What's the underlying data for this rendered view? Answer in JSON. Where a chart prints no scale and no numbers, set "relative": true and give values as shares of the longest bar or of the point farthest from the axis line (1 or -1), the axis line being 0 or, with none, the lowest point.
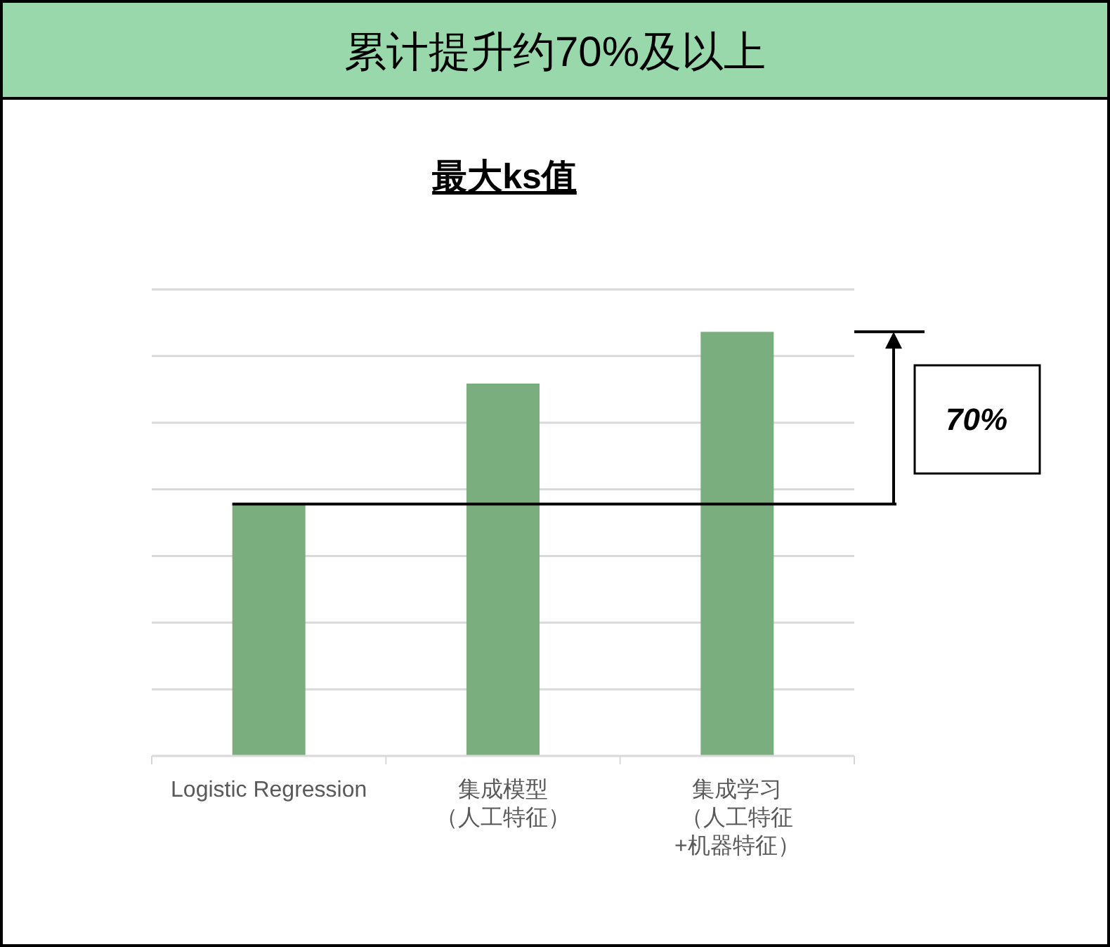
{
  "chart_data": {
    "type": "bar",
    "title": "累计提升约70%及以上",
    "subtitle": "最大ks值",
    "categories": [
      "Logistic Regression",
      "集成模型（人工特征）",
      "集成学习（人工特征+机器特征）"
    ],
    "values": [
      0.594,
      0.878,
      1
    ],
    "color": "#7aae7e",
    "relative": true,
    "grid": "y",
    "ref_lines": [
      {
        "axis": "y",
        "value": 0.594,
        "color": "#000000"
      }
    ],
    "annotations": [
      "70%"
    ]
  }
}
